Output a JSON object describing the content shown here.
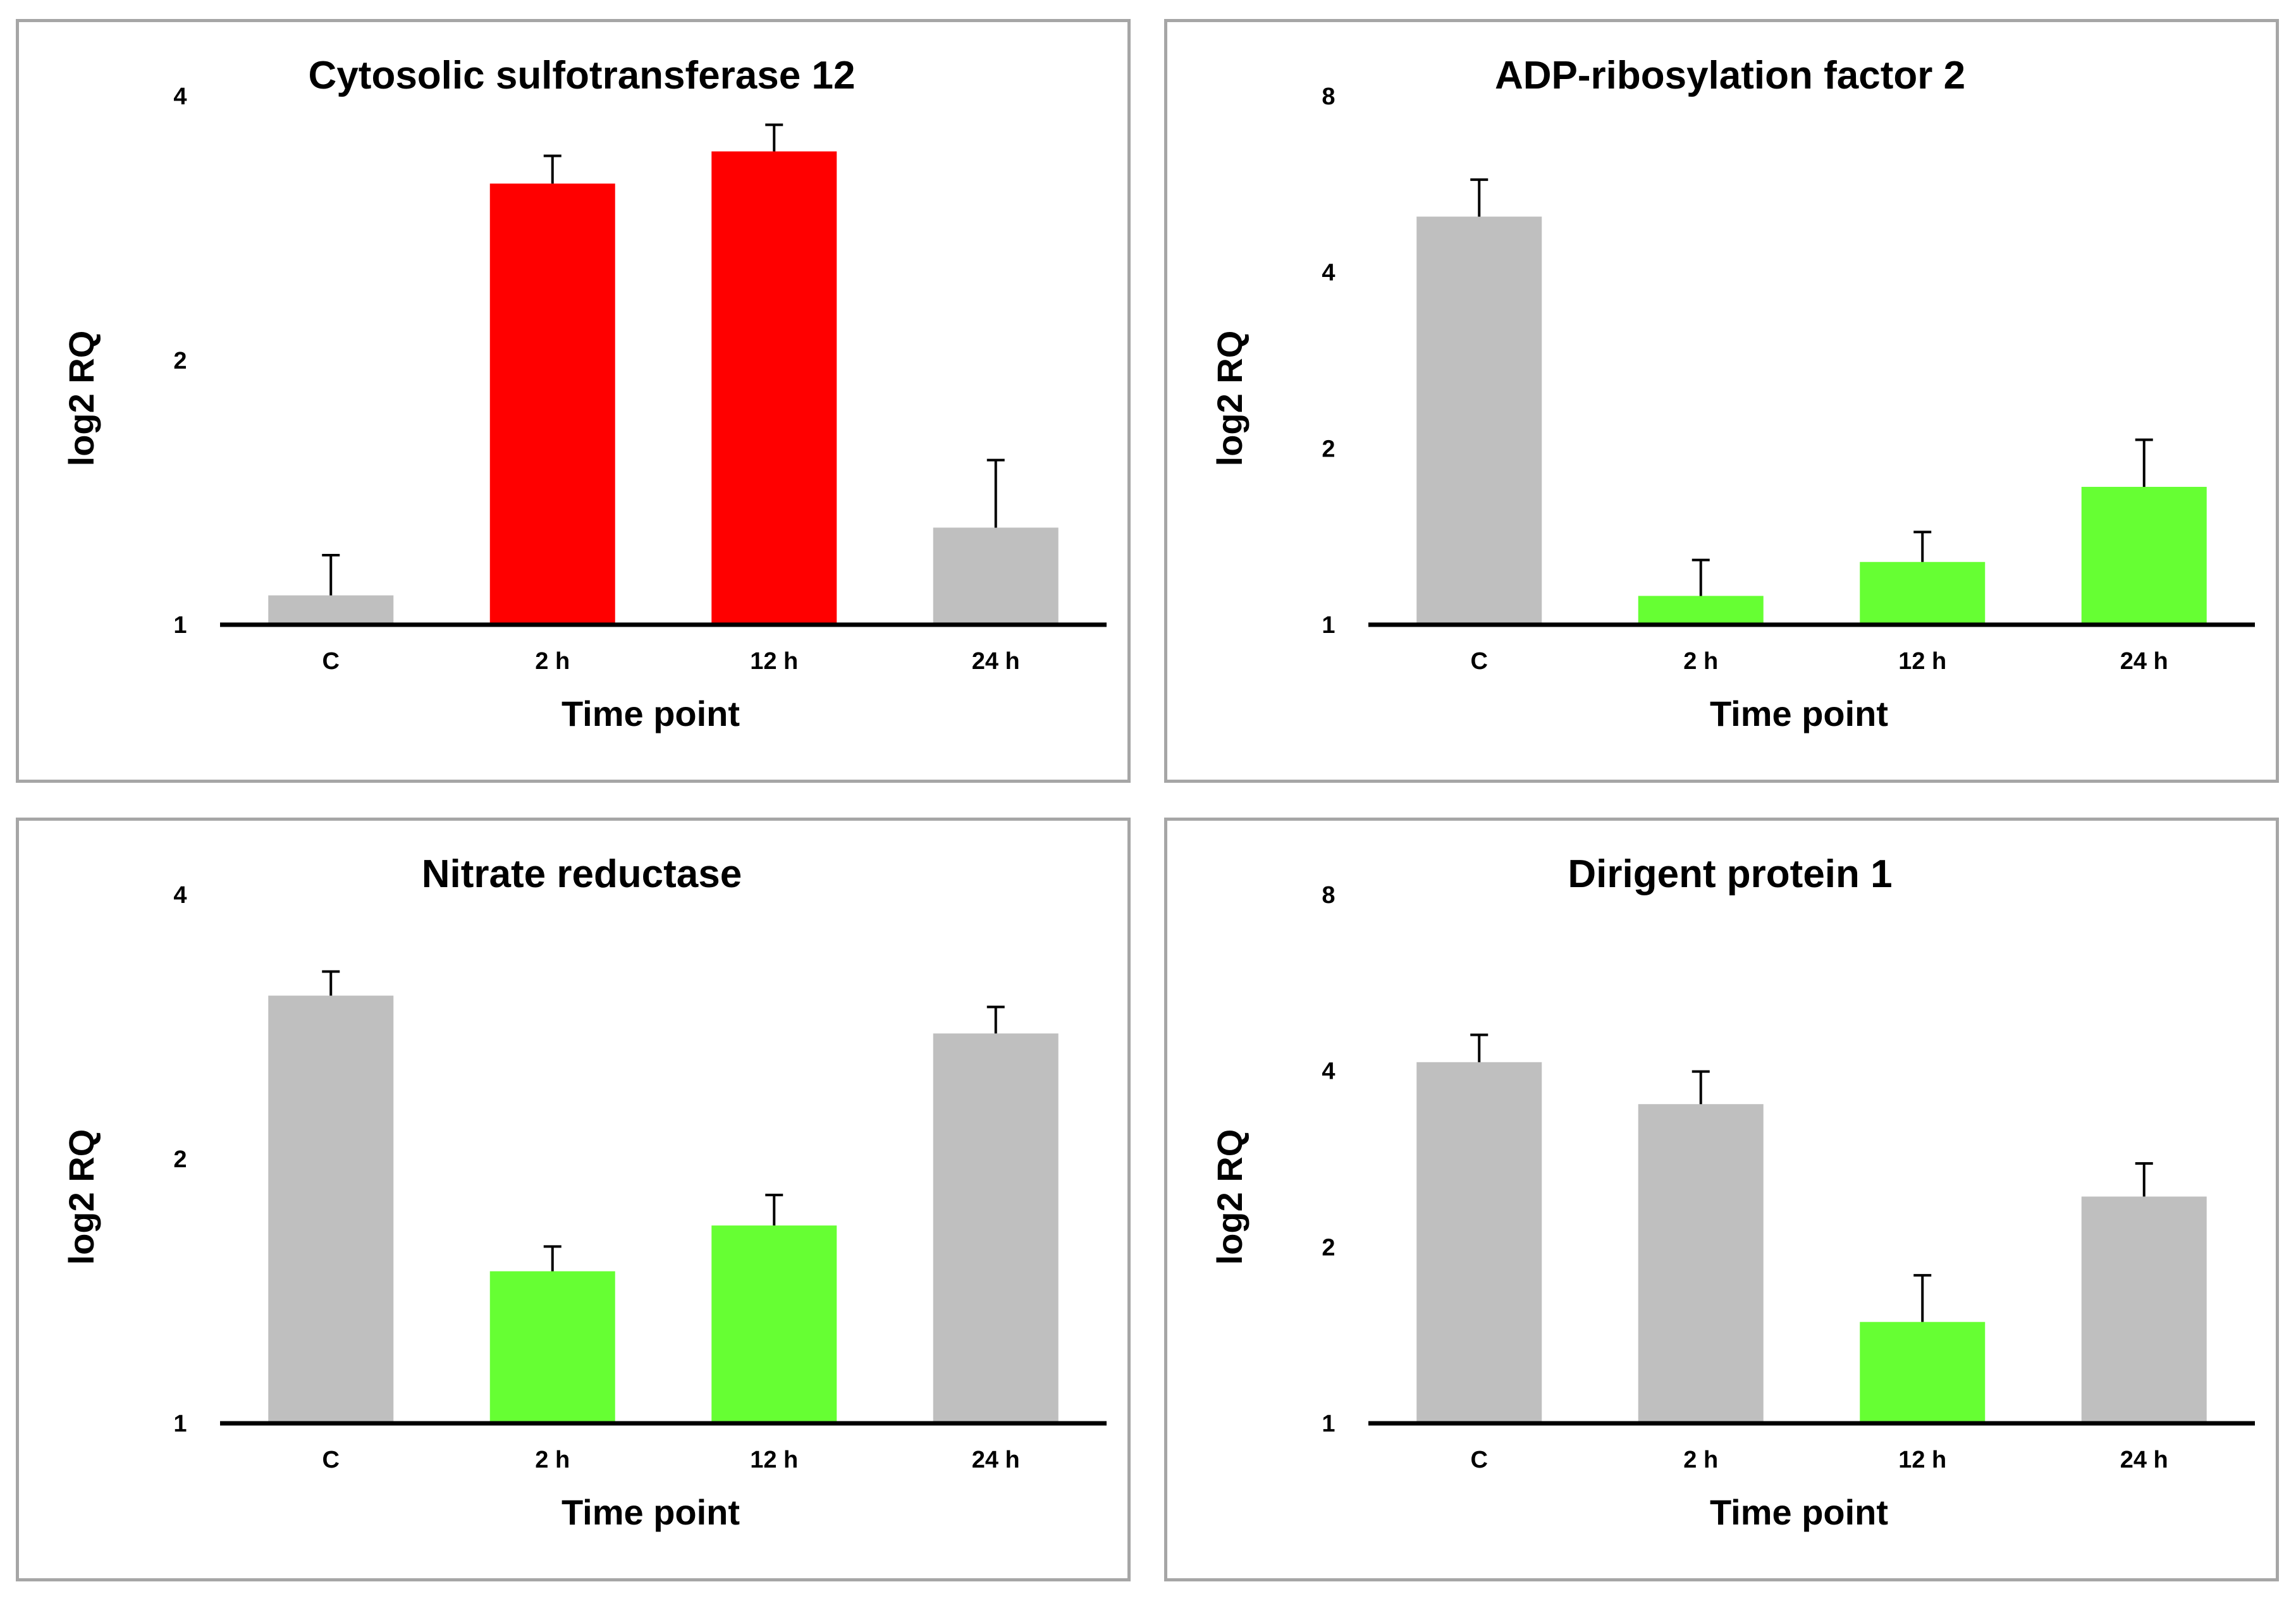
{
  "colors": {
    "control": "#bfbfbf",
    "up": "#ff0000",
    "down": "#66ff33",
    "axis": "#000000",
    "border": "#a6a6a6"
  },
  "chart_data": [
    {
      "type": "bar",
      "title": "Cytosolic sulfotransferase 12",
      "xlabel": "Time point",
      "ylabel": "log2 RQ",
      "categories": [
        "C",
        "2 h",
        "12 h",
        "24 h"
      ],
      "scale": "log2",
      "yticks": [
        1,
        2,
        4
      ],
      "ylim": [
        1,
        4
      ],
      "values": [
        1.08,
        3.18,
        3.46,
        1.29
      ],
      "errors": [
        0.12,
        0.24,
        0.25,
        0.25
      ],
      "bar_colors": [
        "control",
        "up",
        "up",
        "control"
      ],
      "grid": false,
      "legend": "none"
    },
    {
      "type": "bar",
      "title": "ADP-ribosylation factor 2",
      "xlabel": "Time point",
      "ylabel": "log2 RQ",
      "categories": [
        "C",
        "2 h",
        "12 h",
        "24 h"
      ],
      "scale": "log2",
      "yticks": [
        1,
        2,
        4,
        8
      ],
      "ylim": [
        1,
        8
      ],
      "values": [
        4.98,
        1.12,
        1.28,
        1.72
      ],
      "errors": [
        0.78,
        0.17,
        0.16,
        0.35
      ],
      "bar_colors": [
        "control",
        "down",
        "down",
        "down"
      ],
      "grid": false,
      "legend": "none"
    },
    {
      "type": "bar",
      "title": "Nitrate reductase",
      "xlabel": "Time point",
      "ylabel": "log2 RQ",
      "categories": [
        "C",
        "2 h",
        "12 h",
        "24 h"
      ],
      "scale": "log2",
      "yticks": [
        1,
        2,
        4
      ],
      "ylim": [
        1,
        4
      ],
      "values": [
        3.07,
        1.49,
        1.68,
        2.78
      ],
      "errors": [
        0.2,
        0.1,
        0.14,
        0.2
      ],
      "bar_colors": [
        "control",
        "down",
        "down",
        "control"
      ],
      "grid": false,
      "legend": "none"
    },
    {
      "type": "bar",
      "title": "Dirigent protein 1",
      "xlabel": "Time point",
      "ylabel": "log2 RQ",
      "categories": [
        "C",
        "2 h",
        "12 h",
        "24 h"
      ],
      "scale": "log2",
      "yticks": [
        1,
        2,
        4,
        8
      ],
      "ylim": [
        1,
        8
      ],
      "values": [
        4.14,
        3.51,
        1.49,
        2.44
      ],
      "errors": [
        0.47,
        0.48,
        0.3,
        0.34
      ],
      "bar_colors": [
        "control",
        "control",
        "down",
        "control"
      ],
      "grid": false,
      "legend": "none"
    }
  ]
}
